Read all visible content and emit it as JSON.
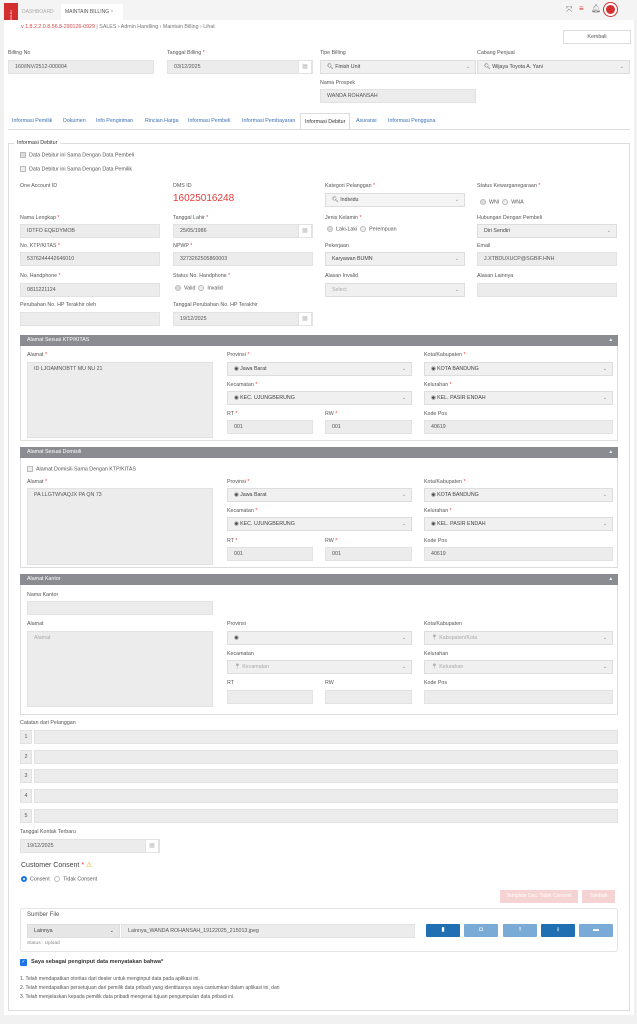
{
  "topbar": {
    "tabs": [
      {
        "label": "DASHBOARD"
      },
      {
        "label": "MAINTAIN BILLING",
        "close": "×"
      }
    ],
    "logo_text": "TOYOTA",
    "icons": [
      "expand-icon",
      "menu-icon",
      "bell-icon",
      "avatar"
    ]
  },
  "breadcrumb": {
    "version": "v 1.8.2.2.0.8.56.8-290126-0929",
    "sep": "|",
    "items": [
      "SALES",
      "Admin Handling",
      "Maintain Billing",
      "Lihat"
    ]
  },
  "kembali": "Kembali",
  "header": {
    "billing_no": {
      "label": "Billing No",
      "value": "160/INV/2512-000004"
    },
    "tanggal_billing": {
      "label": "Tanggal Billing",
      "value": "03/12/2025"
    },
    "tipe_billing": {
      "label": "Tipe Billing",
      "value": "Finish Unit"
    },
    "cabang_penjual": {
      "label": "Cabang Penjual",
      "value": "Wijaya Toyota A. Yani"
    },
    "nama_prospek": {
      "label": "Nama Prospek",
      "value": "WANDA ROHANSAH"
    }
  },
  "tabs": [
    "Informasi Pemilik",
    "Dokumen",
    "Info Pengiriman",
    "Rincian Harga",
    "Informasi Pembeli",
    "Informasi Pembayaran",
    "Informasi Debitur",
    "Asuransi",
    "Informasi Pengguna"
  ],
  "active_tab": "Informasi Debitur",
  "debitur": {
    "legend": "Informasi Debitur",
    "cb_pembeli": "Data Debitur ini Sama Dengan Data Pembeli",
    "cb_pemilik": "Data Debitur ini Sama Dengan Data Pemilik",
    "one_account_id": {
      "label": "One Account ID",
      "value": ""
    },
    "dms_id": {
      "label": "DMS ID",
      "value": "16025016248"
    },
    "kategori": {
      "label": "Kategori Pelanggan",
      "value": "Individu"
    },
    "status_kw": {
      "label": "Status Kewarganegaraan",
      "options": [
        "WNI",
        "WNA"
      ],
      "selected": "WNI"
    },
    "nama": {
      "label": "Nama Lengkap",
      "value": "IDTFO EQEDYMOB"
    },
    "tgl_lahir": {
      "label": "Tanggal Lahir",
      "value": "25/05/1986"
    },
    "jenis_kelamin": {
      "label": "Jenis Kelamin",
      "options": [
        "Laki-Laki",
        "Perempuan"
      ],
      "selected": "Laki-Laki"
    },
    "hubungan": {
      "label": "Hubungan Dengan Pembeli",
      "value": "Diri Sendiri"
    },
    "ktp": {
      "label": "No. KTP/KITAS",
      "value": "5376244442646010"
    },
    "npwp": {
      "label": "NPWP",
      "value": "3273262505860003"
    },
    "pekerjaan": {
      "label": "Pekerjaan",
      "value": "Karyawan BUMN"
    },
    "email": {
      "label": "Email",
      "value": "J.XTBDUXUCP@SGBIF.HNH"
    },
    "hp": {
      "label": "No. Handphone",
      "value": "0811221124"
    },
    "status_hp": {
      "label": "Status No. Handphone",
      "options": [
        "Valid",
        "Invalid"
      ],
      "selected": "Valid"
    },
    "alasan_invalid": {
      "label": "Alasan Invalid",
      "placeholder": "Select"
    },
    "alasan_lain": {
      "label": "Alasan Lainnya",
      "value": ""
    },
    "perubahan_oleh": {
      "label": "Perubahan No. HP Terakhir oleh",
      "value": ""
    },
    "tgl_perubahan": {
      "label": "Tanggal Perubahan No. HP Terakhir",
      "value": "19/12/2025"
    }
  },
  "labels": {
    "alamat": "Alamat",
    "provinsi": "Provinsi",
    "kota": "Kota/Kabupaten",
    "kecamatan": "Kecamatan",
    "kelurahan": "Kelurahan",
    "rt": "RT",
    "rw": "RW",
    "kodepos": "Kode Pos",
    "nama_kantor": "Nama Kantor"
  },
  "ktp_addr": {
    "title": "Alamat Sesuai KTP/KITAS",
    "alamat": "ID LJOAMNOBTT MU NU 21",
    "provinsi": "Jawa Barat",
    "kota": "KOTA BANDUNG",
    "kecamatan": "KEC. UJUNGBERUNG",
    "kelurahan": "KEL. PASIR ENDAH",
    "rt": "001",
    "rw": "001",
    "kodepos": "40619"
  },
  "dom_addr": {
    "title": "Alamat Sesuai Domisili",
    "checkbox": "Alamat Domisili Sama Dengan KTP/KITAS",
    "alamat": "PA LLGTWVAQJX PA QN 73",
    "provinsi": "Jawa Barat",
    "kota": "KOTA BANDUNG",
    "kecamatan": "KEC. UJUNGBERUNG",
    "kelurahan": "KEL. PASIR ENDAH",
    "rt": "001",
    "rw": "001",
    "kodepos": "40619"
  },
  "kantor_addr": {
    "title": "Alamat Kantor",
    "alamat_ph": "Alamat",
    "kota_ph": "Kabupaten/Kota",
    "kecamatan_ph": "Kecamatan",
    "kelurahan_ph": "Kelurahan"
  },
  "catatan": {
    "label": "Catatan dari Pelanggan",
    "rows": [
      "1",
      "2",
      "3",
      "4",
      "5"
    ]
  },
  "kontak": {
    "label": "Tanggal Kontak Terbaru",
    "value": "19/12/2025"
  },
  "consent": {
    "label": "Customer Consent",
    "options": [
      "Consent",
      "Tidak Consent"
    ],
    "selected": "Consent",
    "btn_template": "Template Doc. Tidak Consent",
    "btn_tambah": "Tambah"
  },
  "sumber": {
    "label": "Sumber File",
    "type": "Lainnya",
    "filename": "Lainnya_WANDA ROHANSAH_19122025_215013.jpeg",
    "status": "Status : Upload"
  },
  "statement": {
    "title": "Saya sebagai penginput data menyatakan bahwa*",
    "lines": [
      "1. Telah mendapatkan otoritas dari dealer untuk menginput data pada aplikasi ini.",
      "2. Telah mendapatkan persetujuan dari pemilik data pribadi yang identitasnya saya cantumkan dalam aplikasi ini, dan",
      "3. Telah menjelaskan kepada pemilik data pribadi mengenai tujuan pengumpulan data pribadi ini."
    ]
  },
  "colors": {
    "accent": "#3a70b5",
    "dms": "#e53935",
    "section": "#8a8c92",
    "primary_btn": "#1f6fb2",
    "light_btn": "#7aaad6",
    "danger_light": "#f6d3d3"
  }
}
